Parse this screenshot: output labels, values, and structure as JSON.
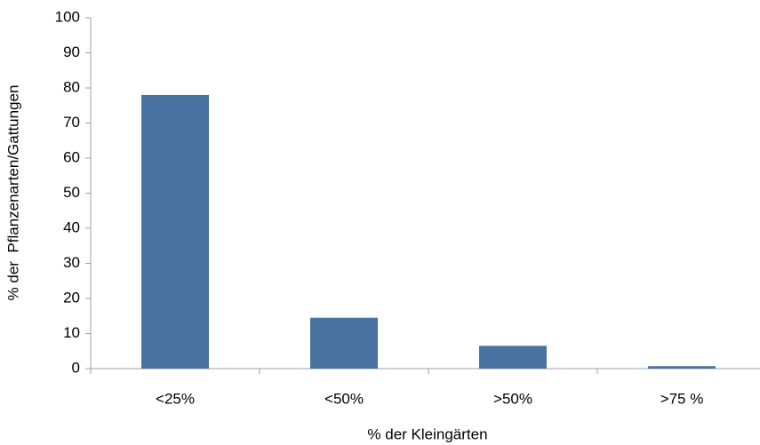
{
  "chart_data": {
    "type": "bar",
    "categories": [
      "<25%",
      "<50%",
      ">50%",
      ">75 %"
    ],
    "values": [
      78,
      14.5,
      6.5,
      0.7
    ],
    "color": "#4a72a0",
    "xlabel": "% der Kleingärten",
    "ylabel": "% der  Pflanzenarten/Gattungen",
    "ylim": [
      0,
      100
    ],
    "yticks": [
      0,
      10,
      20,
      30,
      40,
      50,
      60,
      70,
      80,
      90,
      100
    ],
    "grid": false
  }
}
